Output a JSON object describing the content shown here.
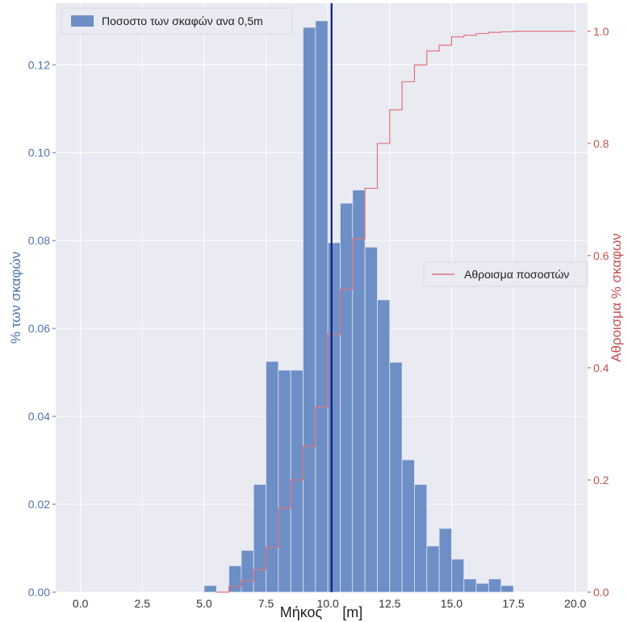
{
  "chart_data": {
    "type": "bar",
    "xlabel": "Μήκος     [m]",
    "ylabel_left": "% των σκαφών",
    "ylabel_right": "Αθροισμα % σκαφων",
    "xlim": [
      -1.0,
      20.5
    ],
    "ylim_left": [
      0,
      0.134
    ],
    "ylim_right": [
      0,
      1.05
    ],
    "x_ticks": [
      "0.0",
      "2.5",
      "5.0",
      "7.5",
      "10.0",
      "12.5",
      "15.0",
      "17.5",
      "20.0"
    ],
    "x_tick_values": [
      0.0,
      2.5,
      5.0,
      7.5,
      10.0,
      12.5,
      15.0,
      17.5,
      20.0
    ],
    "y_left_ticks": [
      "0.00",
      "0.02",
      "0.04",
      "0.06",
      "0.08",
      "0.10",
      "0.12"
    ],
    "y_left_tick_values": [
      0.0,
      0.02,
      0.04,
      0.06,
      0.08,
      0.1,
      0.12
    ],
    "y_right_ticks": [
      "0.0",
      "0.2",
      "0.4",
      "0.6",
      "0.8",
      "1.0"
    ],
    "y_right_tick_values": [
      0.0,
      0.2,
      0.4,
      0.6,
      0.8,
      1.0
    ],
    "grid": true,
    "colors": {
      "background": "#eaeaf2",
      "grid": "#ffffff",
      "bars": "#6e8fc5",
      "bar_edge": "#dde4f2",
      "cumulative": "#e0747c",
      "left_axis": "#4c72b0",
      "right_axis": "#c44e52",
      "vline": "#0a1a8c"
    },
    "histogram": {
      "name": "Ποσοστο των σκαφών ανα 0,5m",
      "bin_width": 0.5,
      "bin_starts": [
        5.0,
        5.5,
        6.0,
        6.5,
        7.0,
        7.5,
        8.0,
        8.5,
        9.0,
        9.5,
        10.0,
        10.5,
        11.0,
        11.5,
        12.0,
        12.5,
        13.0,
        13.5,
        14.0,
        14.5,
        15.0,
        15.5,
        16.0,
        16.5,
        17.0
      ],
      "values": [
        0.0015,
        0.0,
        0.006,
        0.0095,
        0.0245,
        0.0525,
        0.0505,
        0.0505,
        0.1285,
        0.13,
        0.0795,
        0.0885,
        0.0915,
        0.0785,
        0.0665,
        0.0523,
        0.0301,
        0.0245,
        0.0105,
        0.0145,
        0.0075,
        0.003,
        0.002,
        0.003,
        0.0015
      ],
      "legend_position": "upper-left"
    },
    "cumulative": {
      "name": "Αθροισμα ποσοστών",
      "x": [
        5.5,
        6.0,
        6.5,
        7.0,
        7.5,
        8.0,
        8.5,
        9.0,
        9.5,
        10.0,
        10.5,
        11.0,
        11.5,
        12.0,
        12.5,
        13.0,
        13.5,
        14.0,
        14.5,
        15.0,
        15.5,
        16.0,
        16.5,
        17.0,
        17.5,
        20.0
      ],
      "y": [
        0.0,
        0.01,
        0.02,
        0.04,
        0.08,
        0.15,
        0.2,
        0.26,
        0.33,
        0.46,
        0.54,
        0.63,
        0.72,
        0.8,
        0.86,
        0.91,
        0.94,
        0.965,
        0.975,
        0.99,
        0.993,
        0.996,
        0.998,
        0.999,
        1.0,
        1.0
      ],
      "legend_position": "center-right"
    },
    "vertical_line": {
      "x": 10.15
    }
  }
}
